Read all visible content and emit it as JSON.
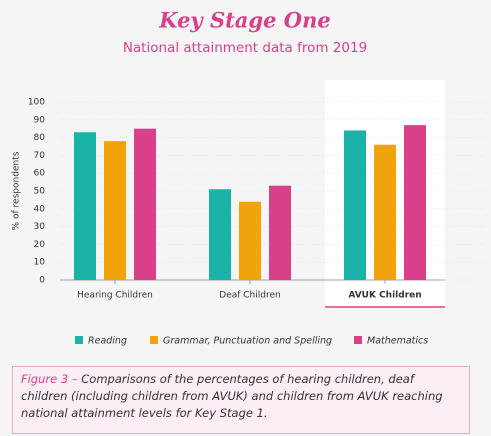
{
  "chart_data": {
    "type": "bar",
    "title": "Key Stage One",
    "subtitle": "National attainment data from 2019",
    "y_label": "% of respondents",
    "categories": [
      "Hearing Children",
      "Deaf Children",
      "AVUK Children"
    ],
    "highlighted_category": 2,
    "series": [
      {
        "name": "Reading",
        "color": "#1bb3a8",
        "values": [
          83,
          51,
          84
        ]
      },
      {
        "name": "Grammar, Punctuation and Spelling",
        "color": "#f0a30a",
        "values": [
          78,
          44,
          76
        ]
      },
      {
        "name": "Mathematics",
        "color": "#d8408a",
        "values": [
          85,
          53,
          87
        ]
      }
    ],
    "ylim": [
      0,
      100
    ],
    "yticks": [
      0,
      10,
      20,
      30,
      40,
      50,
      60,
      70,
      80,
      90,
      100
    ],
    "grid": true
  },
  "caption": {
    "label": "Figure 3 –",
    "text": "Comparisons of the percentages of hearing children, deaf children (including children from AVUK) and children from AVUK reaching national attainment levels for Key Stage 1."
  }
}
